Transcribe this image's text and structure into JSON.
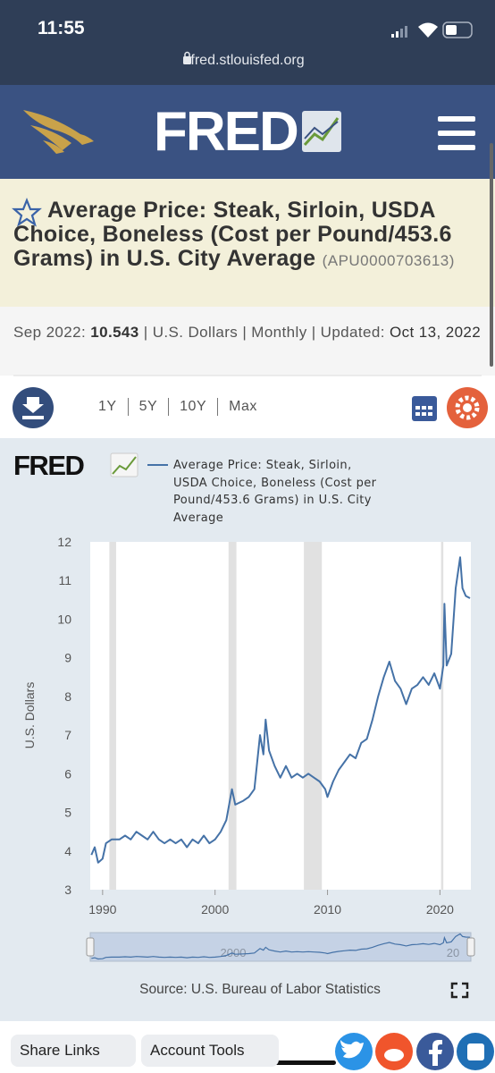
{
  "status_bar": {
    "time": "11:55"
  },
  "browser": {
    "url": "fred.stlouisfed.org"
  },
  "header": {
    "logo_text": "FRED"
  },
  "series_info": {
    "title": "Average Price: Steak, Sirloin, USDA Choice, Boneless (Cost per Pound/453.6 Grams) in U.S. City Average",
    "id": "(APU0000703613)"
  },
  "meta": {
    "date_label": "Sep 2022:",
    "value": "10.543",
    "details": "| U.S. Dollars | Monthly | Updated:",
    "updated": "Oct 13, 2022"
  },
  "ranges": [
    "1Y",
    "5Y",
    "10Y",
    "Max"
  ],
  "chart_data": {
    "type": "line",
    "logo_text": "FRED",
    "y_label": "U.S. Dollars",
    "source": "Source: U.S. Bureau of Labor Statistics",
    "x": [
      1989.0,
      1989.3,
      1989.6,
      1990.0,
      1990.3,
      1990.8,
      1991.5,
      1992.0,
      1992.5,
      1993.0,
      1993.5,
      1994.0,
      1994.5,
      1995.0,
      1995.5,
      1996.0,
      1996.5,
      1997.0,
      1997.5,
      1998.0,
      1998.5,
      1999.0,
      1999.5,
      2000.0,
      2000.5,
      2001.0,
      2001.5,
      2001.8,
      2002.5,
      2003.0,
      2003.5,
      2004.0,
      2004.3,
      2004.5,
      2004.8,
      2005.3,
      2005.8,
      2006.3,
      2006.8,
      2007.3,
      2007.8,
      2008.3,
      2008.8,
      2009.3,
      2009.8,
      2010.0,
      2010.5,
      2011.0,
      2011.5,
      2012.0,
      2012.5,
      2013.0,
      2013.5,
      2014.0,
      2014.5,
      2015.0,
      2015.5,
      2016.0,
      2016.5,
      2017.0,
      2017.5,
      2018.0,
      2018.5,
      2019.0,
      2019.5,
      2020.0,
      2020.3,
      2020.4,
      2020.6,
      2021.0,
      2021.4,
      2021.8,
      2022.0,
      2022.3,
      2022.67
    ],
    "series": [
      {
        "name": "Average Price: Steak, Sirloin, USDA Choice, Boneless (Cost per Pound/453.6 Grams) in U.S. City Average",
        "color": "#4572a7",
        "values": [
          3.9,
          4.1,
          3.7,
          3.8,
          4.2,
          4.3,
          4.3,
          4.4,
          4.3,
          4.5,
          4.4,
          4.3,
          4.5,
          4.3,
          4.2,
          4.3,
          4.2,
          4.3,
          4.1,
          4.3,
          4.2,
          4.4,
          4.2,
          4.3,
          4.5,
          4.8,
          5.6,
          5.2,
          5.3,
          5.4,
          5.6,
          7.0,
          6.5,
          7.4,
          6.6,
          6.2,
          5.9,
          6.2,
          5.9,
          6.0,
          5.9,
          6.0,
          5.9,
          5.8,
          5.6,
          5.4,
          5.8,
          6.1,
          6.3,
          6.5,
          6.4,
          6.8,
          6.9,
          7.4,
          8.0,
          8.5,
          8.9,
          8.4,
          8.2,
          7.8,
          8.2,
          8.3,
          8.5,
          8.3,
          8.6,
          8.2,
          8.8,
          10.4,
          8.8,
          9.1,
          10.8,
          11.6,
          10.8,
          10.6,
          10.543
        ]
      }
    ],
    "recessions": [
      [
        1990.6,
        1991.2
      ],
      [
        2001.2,
        2001.9
      ],
      [
        2007.9,
        2009.5
      ],
      [
        2020.1,
        2020.3
      ]
    ],
    "xlim": [
      1988.9,
      2022.75
    ],
    "ylim": [
      3,
      12
    ],
    "xticks": [
      1990,
      2000,
      2010,
      2020
    ],
    "yticks": [
      3,
      4,
      5,
      6,
      7,
      8,
      9,
      10,
      11,
      12
    ],
    "grid": false,
    "navigator_labels": [
      "2000",
      "20"
    ]
  },
  "footer": {
    "share": "Share Links",
    "account": "Account Tools"
  }
}
